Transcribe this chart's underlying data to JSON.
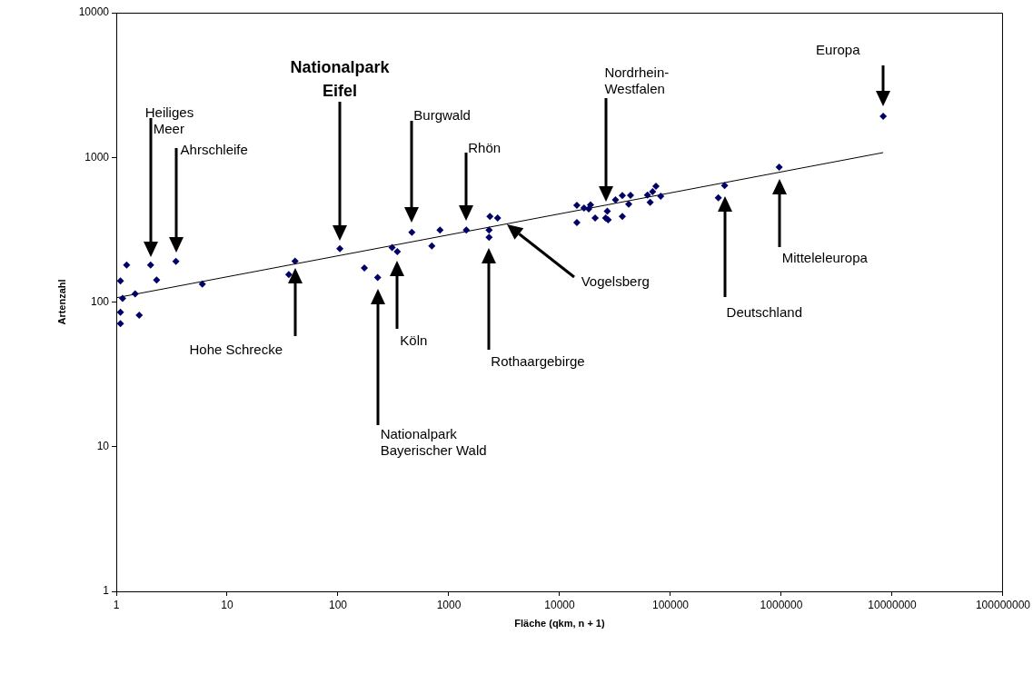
{
  "chart_data": {
    "type": "scatter",
    "xlabel": "Fläche (qkm, n + 1)",
    "ylabel": "Artenzahl",
    "log": "xy",
    "xlim": [
      1,
      100000000
    ],
    "xticks": [
      1,
      10,
      100,
      1000,
      10000,
      100000,
      1000000,
      10000000,
      100000000
    ],
    "ylim": [
      1,
      10000
    ],
    "yticks": [
      1,
      10,
      100,
      1000,
      10000
    ],
    "grid": false,
    "legend": false,
    "marker": "diamond",
    "series": [
      {
        "type": "scatter",
        "color": "#000066",
        "x": [
          1.09,
          1.24,
          1.14,
          1.09,
          1.09,
          1.48,
          1.61,
          2.04,
          2.31,
          3.45,
          5.97,
          36,
          41,
          104,
          173,
          228,
          308,
          343,
          464,
          703,
          833,
          1439,
          2350,
          2754,
          2308,
          2308,
          14300,
          14300,
          16600,
          19000,
          18300,
          20900,
          26900,
          26000,
          27400,
          31900,
          36800,
          43600,
          42000,
          36800,
          62000,
          69000,
          74000,
          65600,
          81700,
          8300000,
          957000,
          308000,
          270000
        ],
        "values": [
          140,
          180,
          106,
          85,
          71,
          114,
          81,
          180,
          142,
          191,
          133,
          155,
          192,
          234,
          172,
          148,
          238,
          223,
          303,
          244,
          314,
          314,
          390,
          381,
          314,
          280,
          466,
          354,
          447,
          469,
          440,
          381,
          424,
          381,
          370,
          509,
          545,
          547,
          475,
          390,
          549,
          580,
          632,
          489,
          539,
          1924,
          856,
          638,
          526
        ]
      },
      {
        "type": "line",
        "color": "#000000",
        "marker": "none",
        "x": [
          1,
          8300000
        ],
        "values": [
          107,
          1079
        ]
      }
    ],
    "annotations": [
      "Heiliges\nMeer",
      "Ahrschleife",
      "Nationalpark\nEifel",
      "Burgwald",
      "Rhön",
      "Nordrhein-\nWestfalen",
      "Europa",
      "Hohe Schrecke",
      "Nationalpark\nBayerischer Wald",
      "Köln",
      "Rothaargebirge",
      "Vogelsberg",
      "Deutschland",
      "Mitteleleuropa"
    ]
  }
}
